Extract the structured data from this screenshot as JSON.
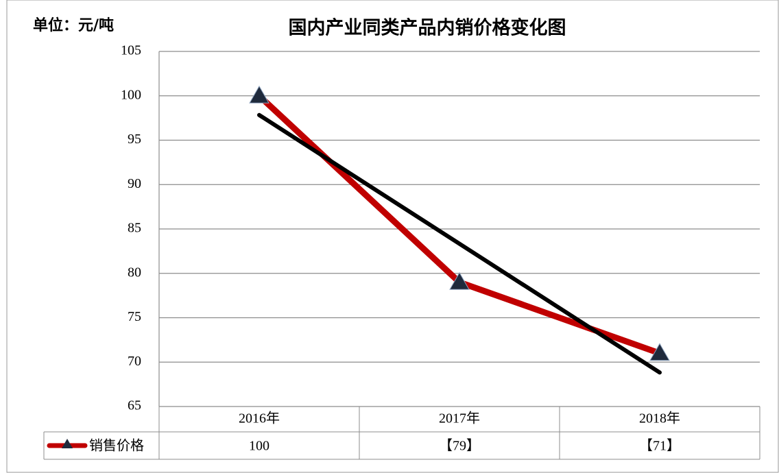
{
  "chart_data": {
    "type": "line",
    "title": "国内产业同类产品内销价格变化图",
    "unit_label": "单位：元/吨",
    "categories": [
      "2016年",
      "2017年",
      "2018年"
    ],
    "series": [
      {
        "name": "销售价格",
        "color": "#c00000",
        "marker_color": "#1f2a3c",
        "values": [
          100,
          79,
          71
        ],
        "value_labels": [
          "100",
          "【79】",
          "【71】"
        ]
      }
    ],
    "ylim": [
      65,
      105
    ],
    "yticks": [
      65,
      70,
      75,
      80,
      85,
      90,
      95,
      100,
      105
    ],
    "grid": true
  }
}
